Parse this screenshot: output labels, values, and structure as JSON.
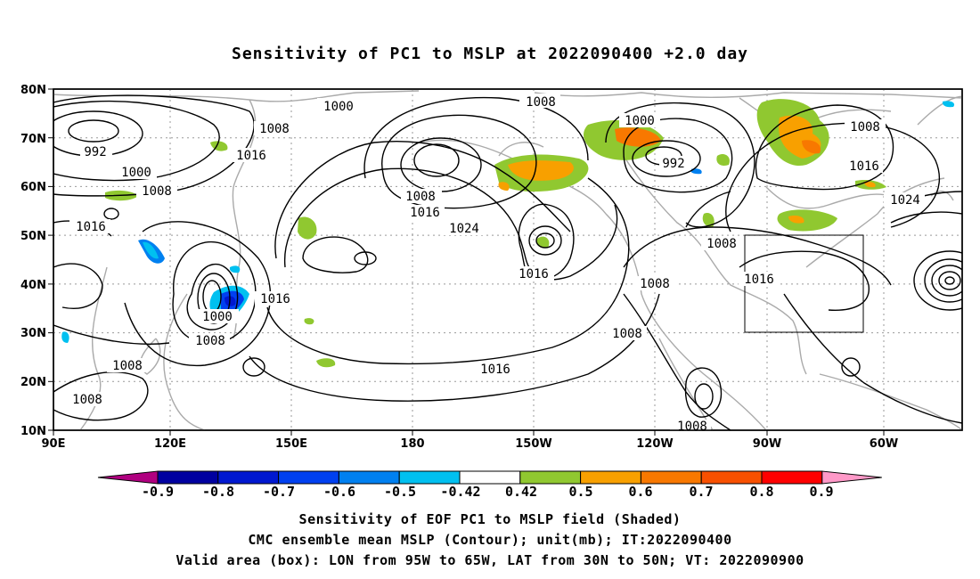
{
  "title": "Sensitivity of PC1 to MSLP at 2022090400 +2.0 day",
  "map": {
    "lat_ticks": [
      "80N",
      "70N",
      "60N",
      "50N",
      "40N",
      "30N",
      "20N",
      "10N"
    ],
    "lon_ticks": [
      "90E",
      "120E",
      "150E",
      "180",
      "150W",
      "120W",
      "90W",
      "60W"
    ],
    "contour_labels": [
      "1000",
      "1008",
      "992",
      "1008",
      "1000",
      "992",
      "1008",
      "1016",
      "1000",
      "1008",
      "1016",
      "1008",
      "1016",
      "1024",
      "1016",
      "1008",
      "1016",
      "1016",
      "1024",
      "1000",
      "1008",
      "1008",
      "1008",
      "1016",
      "1016",
      "1008",
      "1008",
      "1008",
      "1008"
    ],
    "valid_box": {
      "lon_from": "95W",
      "lon_to": "65W",
      "lat_from": "30N",
      "lat_to": "50N"
    }
  },
  "colorbar": {
    "levels": [
      "-0.9",
      "-0.8",
      "-0.7",
      "-0.6",
      "-0.5",
      "-0.42",
      "0.42",
      "0.5",
      "0.6",
      "0.7",
      "0.8",
      "0.9"
    ],
    "colors": [
      "#b00080",
      "#0000a0",
      "#0018d0",
      "#0040f0",
      "#0080f0",
      "#00c0f0",
      "#ffffff",
      "#90c830",
      "#f8a000",
      "#f87800",
      "#f85000",
      "#ff0000",
      "#ff99c8"
    ]
  },
  "captions": [
    "Sensitivity of EOF PC1 to MSLP field (Shaded)",
    "CMC ensemble mean MSLP (Contour); unit(mb); IT:2022090400",
    "Valid area (box): LON from 95W to 65W, LAT from 30N to 50N; VT: 2022090900"
  ]
}
